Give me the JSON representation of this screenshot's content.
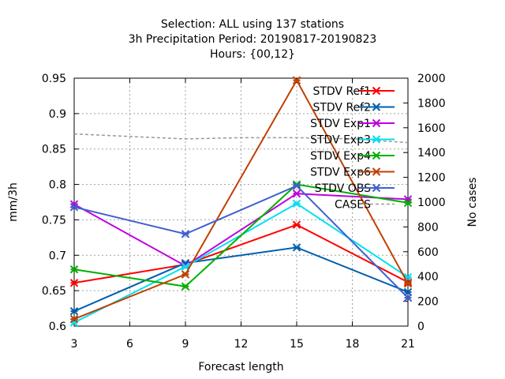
{
  "chart_data": {
    "type": "line",
    "title": [
      "Selection: ALL using   137 stations",
      "3h Precipitation    Period: 20190817-20190823",
      "Hours: {00,12}"
    ],
    "xlabel": "Forecast length",
    "ylabel": "mm/3h",
    "y2label": "No cases",
    "x": [
      3,
      9,
      15,
      21
    ],
    "xticks": [
      3,
      6,
      9,
      12,
      15,
      18,
      21
    ],
    "xlim": [
      3,
      21
    ],
    "ylim": [
      0.6,
      0.95
    ],
    "yticks": [
      0.6,
      0.65,
      0.7,
      0.75,
      0.8,
      0.85,
      0.9,
      0.95
    ],
    "y2lim": [
      0,
      2000
    ],
    "y2ticks": [
      0,
      200,
      400,
      600,
      800,
      1000,
      1200,
      1400,
      1600,
      1800,
      2000
    ],
    "grid": true,
    "legend_position": "top-right",
    "series": [
      {
        "name": "STDV Ref1",
        "color": "#ff0000",
        "values": [
          0.661,
          0.687,
          0.743,
          0.662
        ]
      },
      {
        "name": "STDV Ref2",
        "color": "#0060ad",
        "values": [
          0.621,
          0.689,
          0.711,
          0.648
        ]
      },
      {
        "name": "STDV Exp1",
        "color": "#c000e0",
        "values": [
          0.772,
          0.685,
          0.787,
          0.779
        ]
      },
      {
        "name": "STDV Exp3",
        "color": "#00e0f0",
        "values": [
          0.605,
          0.684,
          0.773,
          0.669
        ]
      },
      {
        "name": "STDV Exp4",
        "color": "#00b000",
        "values": [
          0.68,
          0.656,
          0.8,
          0.774
        ]
      },
      {
        "name": "STDV Exp6",
        "color": "#c04000",
        "values": [
          0.61,
          0.673,
          0.947,
          0.66
        ]
      },
      {
        "name": "STDV OBS",
        "color": "#4060d0",
        "values": [
          0.768,
          0.73,
          0.798,
          0.64
        ]
      }
    ],
    "cases": {
      "name": "CASES",
      "color": "#999999",
      "x": [
        3,
        6,
        9,
        12,
        15,
        18,
        21
      ],
      "values": [
        1550,
        1530,
        1510,
        1520,
        1520,
        1510,
        1480
      ]
    }
  }
}
